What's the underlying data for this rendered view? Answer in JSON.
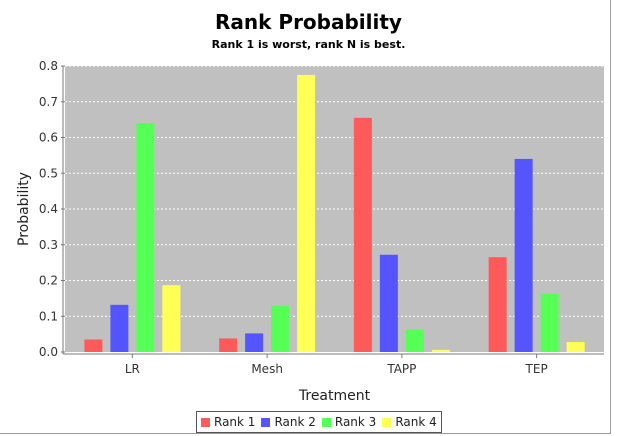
{
  "chart_data": {
    "type": "bar",
    "title": "Rank Probability",
    "subtitle": "Rank 1 is worst, rank N is best.",
    "xlabel": "Treatment",
    "ylabel": "Probability",
    "categories": [
      "LR",
      "Mesh",
      "TAPP",
      "TEP"
    ],
    "ylim": [
      0,
      0.8
    ],
    "yticks": [
      "0.0",
      "0.1",
      "0.2",
      "0.3",
      "0.4",
      "0.5",
      "0.6",
      "0.7",
      "0.8"
    ],
    "series": [
      {
        "name": "Rank 1",
        "color": "#ff5a5a",
        "values": [
          0.035,
          0.038,
          0.655,
          0.265
        ]
      },
      {
        "name": "Rank 2",
        "color": "#5555ff",
        "values": [
          0.132,
          0.052,
          0.272,
          0.54
        ]
      },
      {
        "name": "Rank 3",
        "color": "#55ff55",
        "values": [
          0.64,
          0.13,
          0.063,
          0.163
        ]
      },
      {
        "name": "Rank 4",
        "color": "#ffff55",
        "values": [
          0.187,
          0.775,
          0.006,
          0.028
        ]
      }
    ],
    "grid": true,
    "legend_position": "bottom",
    "plot_background": "#c0c0c0"
  }
}
